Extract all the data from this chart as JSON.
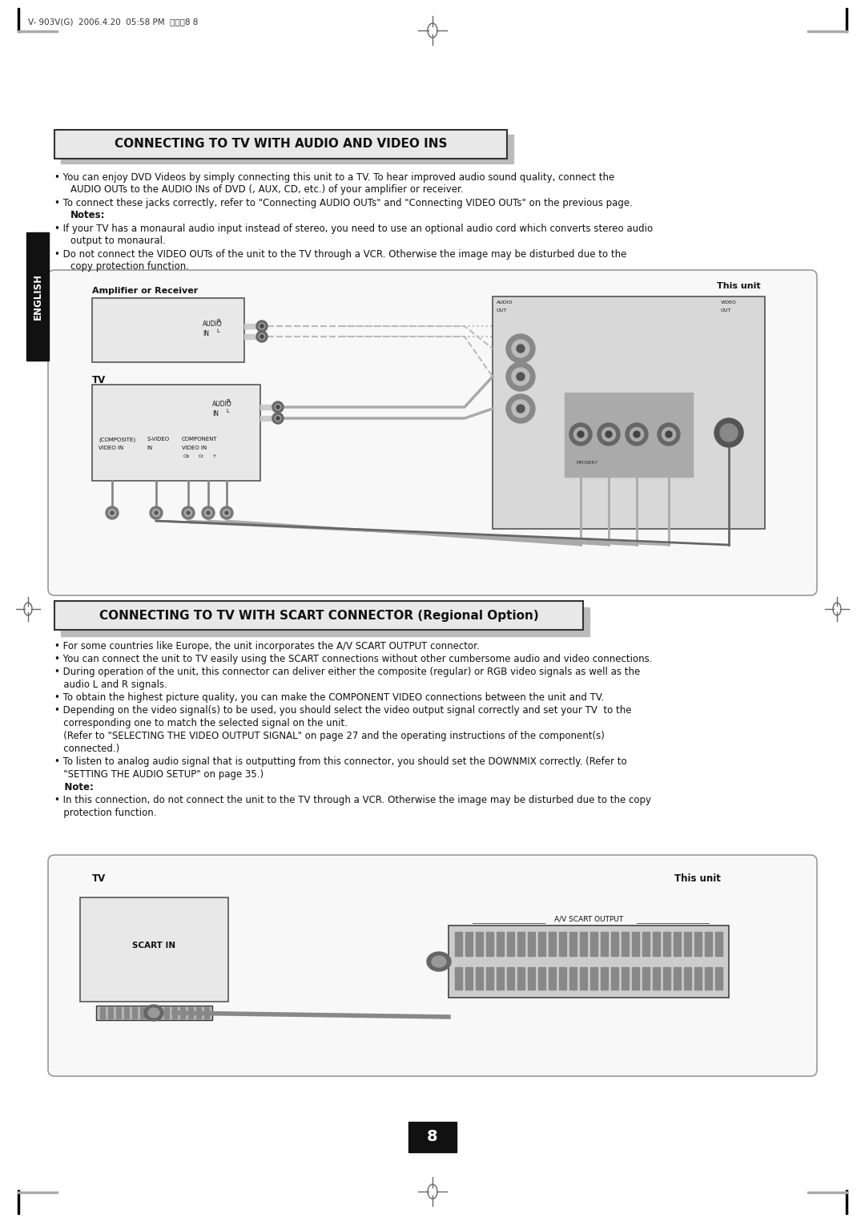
{
  "page_header": "V- 903V(G)  2006.4.20  05:58 PM  페이지8 8",
  "section1_title": "CONNECTING TO TV WITH AUDIO AND VIDEO INS",
  "section1_bullets_line1a": "You can enjoy DVD Videos by simply connecting this unit to a TV. To hear improved audio sound quality, connect the",
  "section1_bullets_line1b": "AUDIO OUTs to the AUDIO INs of DVD (, AUX, CD, etc.) of your amplifier or receiver.",
  "section1_bullets_line2a": "To connect these jacks correctly, refer to \"Connecting AUDIO OUTs\" and \"Connecting VIDEO OUTs\" on the previous page.",
  "section1_bullets_line2b": "Notes:",
  "section1_bullets_line3a": "If your TV has a monaural audio input instead of stereo, you need to use an optional audio cord which converts stereo audio",
  "section1_bullets_line3b": "output to monaural.",
  "section1_bullets_line4a": "Do not connect the VIDEO OUTs of the unit to the TV through a VCR. Otherwise the image may be disturbed due to the",
  "section1_bullets_line4b": "copy protection function.",
  "section2_title": "CONNECTING TO TV WITH SCART CONNECTOR (Regional Option)",
  "section2_bullets": [
    "• For some countries like Europe, the unit incorporates the A/V SCART OUTPUT connector.",
    "• You can connect the unit to TV easily using the SCART connections without other cumbersome audio and video connections.",
    "• During operation of the unit, this connector can deliver either the composite (regular) or RGB video signals as well as the",
    "   audio L and R signals.",
    "• To obtain the highest picture quality, you can make the COMPONENT VIDEO connections between the unit and TV.",
    "• Depending on the video signal(s) to be used, you should select the video output signal correctly and set your TV  to the",
    "   corresponding one to match the selected signal on the unit.",
    "   (Refer to \"SELECTING THE VIDEO OUTPUT SIGNAL\" on page 27 and the operating instructions of the component(s)",
    "   connected.)",
    "• To listen to analog audio signal that is outputting from this connector, you should set the DOWNMIX correctly. (Refer to",
    "   \"SETTING THE AUDIO SETUP\" on page 35.)",
    "   Note:",
    "• In this connection, do not connect the unit to the TV through a VCR. Otherwise the image may be disturbed due to the copy",
    "   protection function."
  ],
  "page_number": "8",
  "english_label": "ENGLISH",
  "bg_color": "#ffffff"
}
